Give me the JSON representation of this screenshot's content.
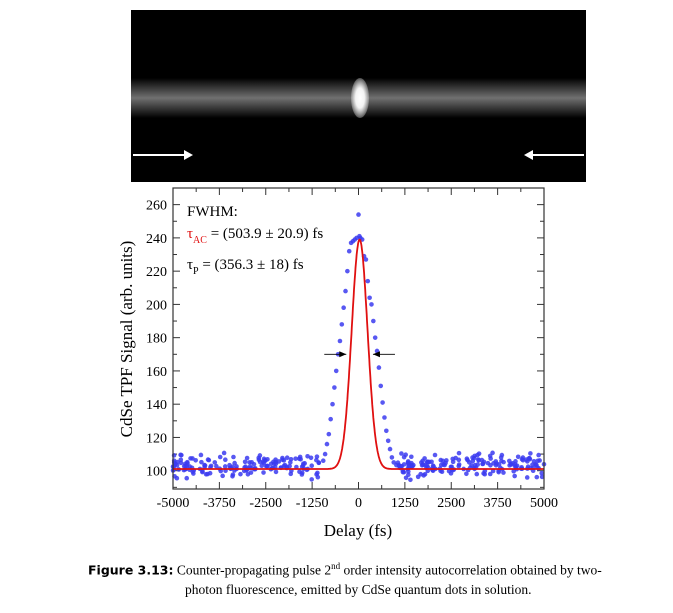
{
  "photo": {
    "description_icon": "white-arrows"
  },
  "chart_data": {
    "type": "scatter",
    "xlabel": "Delay (fs)",
    "ylabel": "CdSe TPF Signal (arb. units)",
    "xlim": [
      -5000,
      5000
    ],
    "ylim": [
      89,
      270
    ],
    "xticks": [
      -5000,
      -3750,
      -2500,
      -1250,
      0,
      1250,
      2500,
      3750,
      5000
    ],
    "xtick_labels": [
      "-5000",
      "-3750",
      "-2500",
      "-1250",
      "0",
      "1250",
      "2500",
      "3750",
      "5000"
    ],
    "yticks": [
      100,
      120,
      140,
      160,
      180,
      200,
      220,
      240,
      260
    ],
    "ytick_labels": [
      "100",
      "120",
      "140",
      "160",
      "180",
      "200",
      "220",
      "240",
      "260"
    ],
    "grid": false,
    "annotations": {
      "fwhm_label": "FWHM:",
      "tau_ac_symbol": "τ",
      "tau_ac_sub": "AC",
      "tau_ac_value": " = (503.9 ± 20.9) fs",
      "tau_p_symbol": "τ",
      "tau_p_sub": "P",
      "tau_p_value": " = (356.3 ± 18) fs",
      "fwhm_arrow_level": 170
    },
    "series": [
      {
        "name": "data",
        "kind": "scatter",
        "color": "#3b3bf0",
        "peak_points": [
          [
            -250,
            232
          ],
          [
            -200,
            237
          ],
          [
            -150,
            238
          ],
          [
            -100,
            239
          ],
          [
            -50,
            240
          ],
          [
            0,
            254
          ],
          [
            25,
            241
          ],
          [
            50,
            240
          ],
          [
            100,
            239
          ],
          [
            150,
            229
          ],
          [
            200,
            227
          ],
          [
            -300,
            220
          ],
          [
            -350,
            208
          ],
          [
            -400,
            198
          ],
          [
            -450,
            188
          ],
          [
            -500,
            178
          ],
          [
            -550,
            170
          ],
          [
            -600,
            160
          ],
          [
            -650,
            150
          ],
          [
            -700,
            140
          ],
          [
            -750,
            131
          ],
          [
            -800,
            122
          ],
          [
            -850,
            116
          ],
          [
            -900,
            110
          ],
          [
            -950,
            106
          ],
          [
            250,
            214
          ],
          [
            300,
            204
          ],
          [
            350,
            200
          ],
          [
            400,
            190
          ],
          [
            450,
            180
          ],
          [
            500,
            172
          ],
          [
            550,
            162
          ],
          [
            600,
            151
          ],
          [
            650,
            141
          ],
          [
            700,
            132
          ],
          [
            750,
            124
          ],
          [
            800,
            118
          ],
          [
            850,
            113
          ],
          [
            900,
            108
          ],
          [
            950,
            105
          ]
        ],
        "baseline_mean": 103,
        "baseline_noise": 4,
        "baseline_count": 420
      },
      {
        "name": "Gaussian fit",
        "kind": "line",
        "color": "#e01010",
        "baseline": 101,
        "amplitude": 138,
        "center": 30,
        "fwhm": 503.9
      }
    ]
  },
  "caption": {
    "label": "Figure 3.13:",
    "line1": " Counter-propagating pulse 2",
    "sup": "nd",
    "line1_rest": " order intensity autocorrelation obtained by two-",
    "line2": "photon fluorescence, emitted by CdSe quantum dots in solution."
  }
}
